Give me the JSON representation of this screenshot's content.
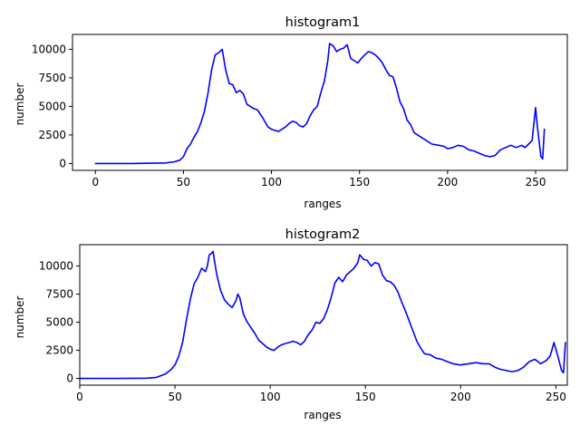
{
  "chart_data": [
    {
      "type": "line",
      "title": "histogram1",
      "xlabel": "ranges",
      "ylabel": "number",
      "xlim": [
        -13,
        268
      ],
      "ylim": [
        -600,
        11300
      ],
      "xticks": [
        0,
        50,
        100,
        150,
        200,
        250
      ],
      "yticks": [
        0,
        2500,
        5000,
        7500,
        10000
      ],
      "ytick_labels": [
        "0",
        "2500",
        "5000",
        "7500",
        "10000"
      ],
      "grid": false,
      "color": "#0000ff",
      "x": [
        0,
        20,
        40,
        45,
        48,
        50,
        52,
        54,
        56,
        58,
        60,
        62,
        64,
        66,
        68,
        70,
        72,
        74,
        76,
        78,
        80,
        82,
        84,
        86,
        88,
        90,
        92,
        95,
        98,
        100,
        102,
        104,
        106,
        108,
        110,
        112,
        114,
        116,
        118,
        120,
        122,
        124,
        126,
        128,
        130,
        132,
        133,
        135,
        137,
        139,
        141,
        143,
        145,
        147,
        149,
        151,
        153,
        155,
        157,
        159,
        161,
        163,
        165,
        167,
        169,
        171,
        173,
        175,
        177,
        179,
        181,
        183,
        185,
        188,
        191,
        195,
        198,
        200,
        203,
        206,
        209,
        212,
        215,
        218,
        221,
        224,
        227,
        230,
        233,
        236,
        239,
        242,
        244,
        246,
        248,
        250,
        251,
        253,
        254,
        255
      ],
      "values": [
        0,
        0,
        50,
        150,
        300,
        600,
        1300,
        1700,
        2300,
        2800,
        3600,
        4600,
        6200,
        8200,
        9500,
        9700,
        10000,
        8200,
        7000,
        6900,
        6200,
        6400,
        6100,
        5200,
        5000,
        4800,
        4700,
        4000,
        3200,
        3000,
        2900,
        2800,
        3000,
        3200,
        3500,
        3700,
        3600,
        3300,
        3200,
        3500,
        4200,
        4700,
        5000,
        6200,
        7200,
        9000,
        10500,
        10300,
        9800,
        10000,
        10100,
        10400,
        9200,
        9000,
        8800,
        9200,
        9500,
        9800,
        9700,
        9500,
        9200,
        8800,
        8200,
        7700,
        7600,
        6600,
        5400,
        4800,
        3800,
        3400,
        2700,
        2500,
        2300,
        2000,
        1700,
        1600,
        1500,
        1300,
        1400,
        1600,
        1500,
        1200,
        1100,
        900,
        700,
        600,
        700,
        1200,
        1400,
        1600,
        1400,
        1600,
        1400,
        1700,
        2000,
        4900,
        3200,
        600,
        400,
        3000
      ]
    },
    {
      "type": "line",
      "title": "histogram2",
      "xlabel": "ranges",
      "ylabel": "number",
      "xlim": [
        0,
        256
      ],
      "ylim": [
        -600,
        11900
      ],
      "xticks": [
        0,
        50,
        100,
        150,
        200,
        250
      ],
      "yticks": [
        0,
        2500,
        5000,
        7500,
        10000
      ],
      "ytick_labels": [
        "0",
        "2500",
        "5000",
        "7500",
        "10000"
      ],
      "grid": false,
      "color": "#0000ff",
      "x": [
        0,
        20,
        35,
        40,
        45,
        48,
        50,
        52,
        54,
        56,
        58,
        60,
        62,
        64,
        66,
        67,
        68,
        69,
        70,
        71,
        72,
        74,
        76,
        78,
        80,
        82,
        83,
        84,
        86,
        88,
        90,
        92,
        94,
        96,
        98,
        100,
        102,
        104,
        106,
        108,
        110,
        112,
        114,
        116,
        118,
        120,
        122,
        124,
        126,
        128,
        130,
        132,
        134,
        136,
        138,
        140,
        142,
        144,
        146,
        147,
        149,
        151,
        153,
        155,
        157,
        159,
        161,
        163,
        165,
        167,
        169,
        171,
        173,
        175,
        177,
        179,
        181,
        184,
        187,
        190,
        193,
        196,
        200,
        204,
        208,
        212,
        215,
        218,
        221,
        224,
        227,
        230,
        233,
        236,
        239,
        242,
        245,
        247,
        249,
        251,
        253,
        254,
        255
      ],
      "values": [
        0,
        0,
        20,
        80,
        400,
        800,
        1200,
        2000,
        3200,
        5200,
        7000,
        8400,
        9000,
        9800,
        9500,
        10000,
        11000,
        11100,
        11300,
        10200,
        9200,
        7800,
        7000,
        6600,
        6300,
        6900,
        7500,
        7200,
        5700,
        5000,
        4500,
        4000,
        3400,
        3100,
        2800,
        2600,
        2500,
        2800,
        3000,
        3100,
        3200,
        3300,
        3200,
        3000,
        3300,
        3900,
        4300,
        5000,
        4900,
        5300,
        6100,
        7200,
        8500,
        9000,
        8600,
        9200,
        9500,
        9800,
        10300,
        11000,
        10600,
        10500,
        10000,
        10300,
        10200,
        9200,
        8700,
        8600,
        8300,
        7700,
        6800,
        6000,
        5100,
        4200,
        3300,
        2700,
        2200,
        2100,
        1800,
        1700,
        1500,
        1300,
        1200,
        1300,
        1400,
        1300,
        1300,
        1000,
        800,
        700,
        600,
        700,
        1000,
        1500,
        1700,
        1300,
        1600,
        2000,
        3200,
        2000,
        700,
        500,
        3200
      ]
    }
  ]
}
